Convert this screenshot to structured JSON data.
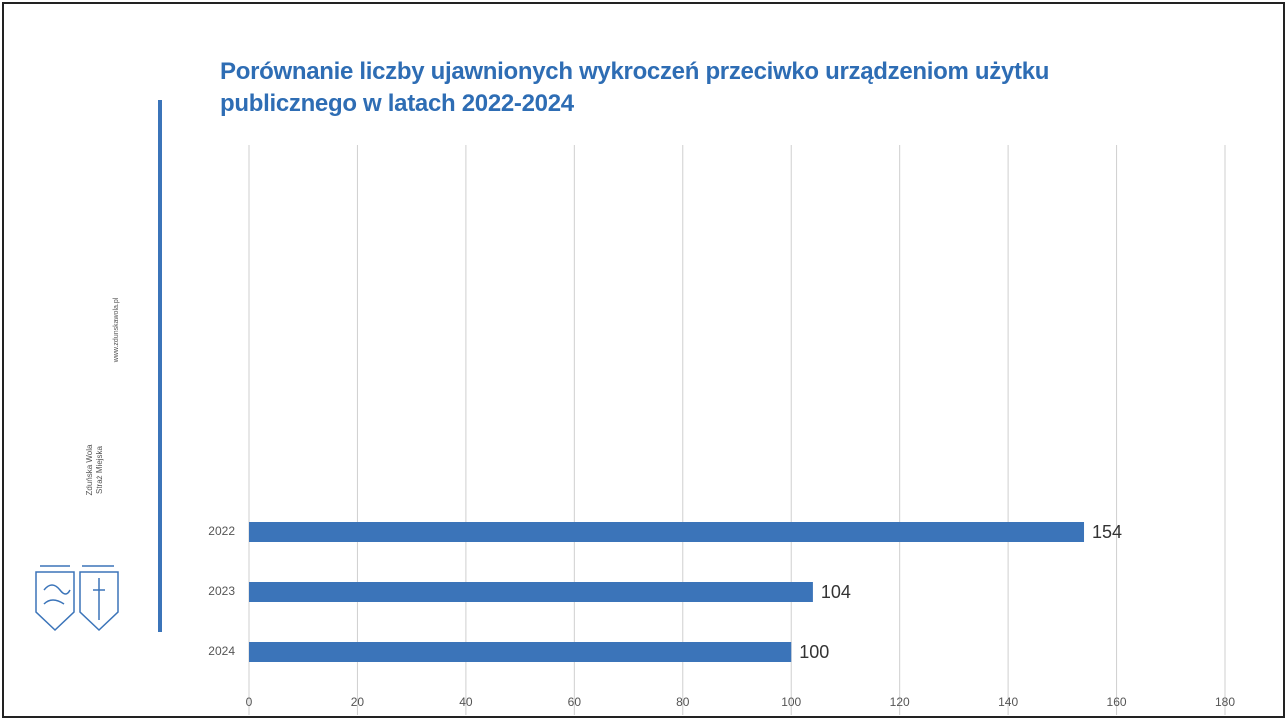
{
  "branding": {
    "website": "www.zdunskawola.pl",
    "city": "Zduńska Wola",
    "unit": "Straż Miejska"
  },
  "chart_data": {
    "type": "bar",
    "orientation": "horizontal",
    "title": "Porównanie liczby ujawnionych wykroczeń przeciwko urządzeniom użytku publicznego w latach 2022-2024",
    "categories": [
      "2022",
      "2023",
      "2024"
    ],
    "values": [
      154,
      104,
      100
    ],
    "color": "#3b74b9",
    "xlim": [
      0,
      180
    ],
    "xticks": [
      0,
      20,
      40,
      60,
      80,
      100,
      120,
      140,
      160,
      180
    ],
    "grid": true
  }
}
